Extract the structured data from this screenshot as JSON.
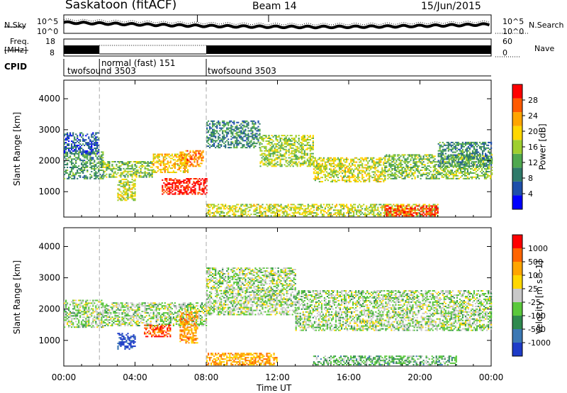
{
  "header": {
    "station": "Saskatoon (fitACF)",
    "beam": "Beam 14",
    "date": "15/Jun/2015"
  },
  "top_panels": {
    "nsky_label": "N.Sky",
    "nsky_ticks": [
      "10^5",
      "10^0"
    ],
    "nsearch_label": "N.Search",
    "nsearch_ticks": [
      "10^5",
      "10^0"
    ],
    "freq_label_line1": "Freq.",
    "freq_label_line2": "[MHz]",
    "freq_ticks": [
      "18",
      "8"
    ],
    "nave_label": "Nave",
    "nave_ticks": [
      "60",
      "0"
    ],
    "cpid_label": "CPID",
    "cpid_segments": [
      {
        "name": "twofsound 3503",
        "start_hr": 0,
        "end_hr": 2
      },
      {
        "name": "normal (fast) 151",
        "start_hr": 2,
        "end_hr": 8
      },
      {
        "name": "twofsound 3503",
        "start_hr": 8,
        "end_hr": 24
      }
    ]
  },
  "chart_data": [
    {
      "type": "heatmap",
      "name": "power",
      "ylabel": "Slant Range [km]",
      "yticks": [
        1000,
        2000,
        3000,
        4000
      ],
      "ylim": [
        180,
        4600
      ],
      "colorbar_label": "Power [dB]",
      "colorbar_ticks": [
        28,
        24,
        20,
        16,
        12,
        8,
        4
      ],
      "colorbar_colors": [
        "#0000ff",
        "#1e4faa",
        "#2f7a6a",
        "#4fa84f",
        "#9fcf2f",
        "#ffd700",
        "#ffa500",
        "#ff5a00",
        "#ff0000"
      ],
      "bands": [
        {
          "t0": 0.0,
          "t1": 2.2,
          "r0": 1400,
          "r1": 2300,
          "level": 0.35
        },
        {
          "t0": 0.0,
          "t1": 2.0,
          "r0": 2200,
          "r1": 2900,
          "level": 0.2
        },
        {
          "t0": 2.2,
          "t1": 5.0,
          "r0": 1450,
          "r1": 1950,
          "level": 0.45
        },
        {
          "t0": 3.0,
          "t1": 4.0,
          "r0": 700,
          "r1": 1400,
          "level": 0.55
        },
        {
          "t0": 5.0,
          "t1": 7.0,
          "r0": 1600,
          "r1": 2200,
          "level": 0.65
        },
        {
          "t0": 5.5,
          "t1": 8.0,
          "r0": 900,
          "r1": 1400,
          "level": 0.95
        },
        {
          "t0": 6.5,
          "t1": 7.8,
          "r0": 1800,
          "r1": 2300,
          "level": 0.75
        },
        {
          "t0": 8.0,
          "t1": 11.0,
          "r0": 2400,
          "r1": 3300,
          "level": 0.3
        },
        {
          "t0": 11.0,
          "t1": 14.0,
          "r0": 1800,
          "r1": 2800,
          "level": 0.5
        },
        {
          "t0": 14.0,
          "t1": 18.0,
          "r0": 1300,
          "r1": 2100,
          "level": 0.55
        },
        {
          "t0": 18.0,
          "t1": 24.0,
          "r0": 1400,
          "r1": 2200,
          "level": 0.45
        },
        {
          "t0": 21.0,
          "t1": 24.0,
          "r0": 1800,
          "r1": 2600,
          "level": 0.3
        },
        {
          "t0": 8.0,
          "t1": 21.0,
          "r0": 200,
          "r1": 600,
          "level": 0.55
        },
        {
          "t0": 18.0,
          "t1": 21.0,
          "r0": 200,
          "r1": 550,
          "level": 0.9
        }
      ]
    },
    {
      "type": "heatmap",
      "name": "velocity",
      "ylabel": "Slant Range [km]",
      "yticks": [
        1000,
        2000,
        3000,
        4000
      ],
      "ylim": [
        180,
        4600
      ],
      "xlabel": "Time UT",
      "xticks": [
        "00:00",
        "04:00",
        "08:00",
        "12:00",
        "16:00",
        "20:00",
        "00:00"
      ],
      "xlim": [
        0,
        24
      ],
      "colorbar_label": "Velocity [m s^-1]",
      "colorbar_ticks": [
        1000,
        500,
        100,
        25,
        -25,
        -100,
        -500,
        -1000
      ],
      "colorbar_colors": [
        "#1e3cc8",
        "#3c78b4",
        "#2f8a4f",
        "#5ac83c",
        "#c8c8c8",
        "#ffd700",
        "#ffa500",
        "#ff6400",
        "#ff0000"
      ],
      "bands": [
        {
          "t0": 0.0,
          "t1": 2.2,
          "r0": 1400,
          "r1": 2300,
          "level": 0.45
        },
        {
          "t0": 2.2,
          "t1": 8.0,
          "r0": 1450,
          "r1": 2200,
          "level": 0.45
        },
        {
          "t0": 3.0,
          "t1": 4.0,
          "r0": 700,
          "r1": 1200,
          "level": 0.05
        },
        {
          "t0": 4.5,
          "t1": 6.0,
          "r0": 1100,
          "r1": 1500,
          "level": 0.85
        },
        {
          "t0": 6.5,
          "t1": 7.5,
          "r0": 900,
          "r1": 1900,
          "level": 0.75
        },
        {
          "t0": 8.0,
          "t1": 13.0,
          "r0": 1800,
          "r1": 3300,
          "level": 0.45
        },
        {
          "t0": 13.0,
          "t1": 24.0,
          "r0": 1300,
          "r1": 2600,
          "level": 0.45
        },
        {
          "t0": 8.0,
          "t1": 12.0,
          "r0": 200,
          "r1": 600,
          "level": 0.7
        },
        {
          "t0": 14.0,
          "t1": 22.0,
          "r0": 200,
          "r1": 500,
          "level": 0.35
        }
      ]
    }
  ]
}
